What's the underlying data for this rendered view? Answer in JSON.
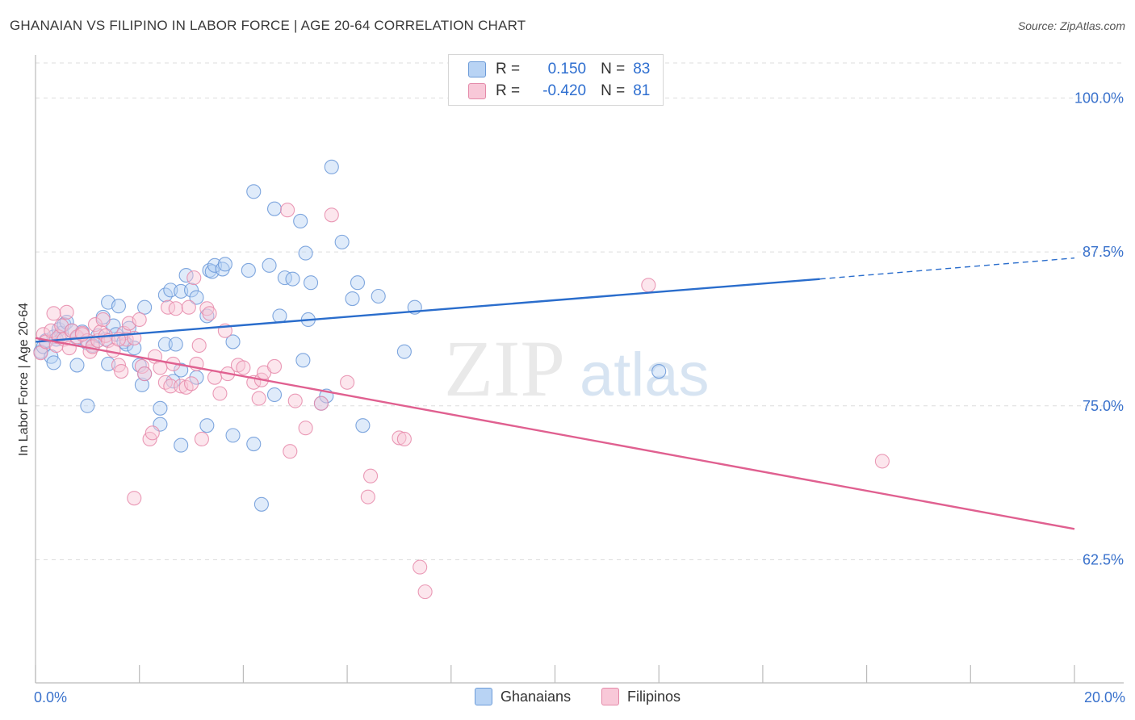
{
  "header": {
    "title": "GHANAIAN VS FILIPINO IN LABOR FORCE | AGE 20-64 CORRELATION CHART",
    "source": "Source: ZipAtlas.com"
  },
  "watermark": {
    "zip": "ZIP",
    "atlas": "atlas"
  },
  "legend_top": {
    "r_label": "R =",
    "n_label": "N =",
    "rows": [
      {
        "r": "0.150",
        "n": "83",
        "color": "#6c9bd8"
      },
      {
        "r": "-0.420",
        "n": "81",
        "color": "#e48aa9"
      }
    ]
  },
  "legend_bottom": [
    "Ghanaians",
    "Filipinos"
  ],
  "colors": {
    "blue_fill": "#b8d3f4",
    "blue_stroke": "#6a98d8",
    "blue_line": "#2a6dcc",
    "pink_fill": "#f8c8d8",
    "pink_stroke": "#e68aaa",
    "pink_line": "#e06090",
    "tick_text": "#3a72cc",
    "grid": "#dddddd"
  },
  "chart_data": {
    "type": "scatter",
    "title": "GHANAIAN VS FILIPINO IN LABOR FORCE | AGE 20-64 CORRELATION CHART",
    "xlabel": "",
    "ylabel": "In Labor Force | Age 20-64",
    "xlim": [
      0,
      20
    ],
    "ylim": [
      52.5,
      103.5
    ],
    "x_tick_labels": [
      {
        "value": 0,
        "label": "0.0%"
      },
      {
        "value": 20,
        "label": "20.0%"
      }
    ],
    "y_ticks": [
      {
        "value": 100,
        "label": "100.0%"
      },
      {
        "value": 87.5,
        "label": "87.5%"
      },
      {
        "value": 75,
        "label": "75.0%"
      },
      {
        "value": 62.5,
        "label": "62.5%"
      }
    ],
    "x_minor_ticks": [
      0,
      2,
      4,
      6,
      8,
      10,
      12,
      14,
      16,
      18,
      20
    ],
    "grid": "horizontal dashed",
    "series": [
      {
        "name": "Ghanaians",
        "r": 0.15,
        "n": 83,
        "trend": {
          "x": [
            0,
            15.1
          ],
          "y": [
            80.2,
            85.3
          ],
          "dashed_to": [
            20,
            87.0
          ]
        },
        "points": [
          [
            0.1,
            79.4
          ],
          [
            0.15,
            79.8
          ],
          [
            0.2,
            80.3
          ],
          [
            0.3,
            79.0
          ],
          [
            0.35,
            80.6
          ],
          [
            0.45,
            81.2
          ],
          [
            0.5,
            80.9
          ],
          [
            0.55,
            81.6
          ],
          [
            0.6,
            81.8
          ],
          [
            0.7,
            81.1
          ],
          [
            0.8,
            80.5
          ],
          [
            0.9,
            81.0
          ],
          [
            1.0,
            80.1
          ],
          [
            1.1,
            79.9
          ],
          [
            1.2,
            80.7
          ],
          [
            1.3,
            82.2
          ],
          [
            1.35,
            80.4
          ],
          [
            1.4,
            83.4
          ],
          [
            1.5,
            81.5
          ],
          [
            1.55,
            80.8
          ],
          [
            1.6,
            83.1
          ],
          [
            1.7,
            80.2
          ],
          [
            1.75,
            80.0
          ],
          [
            1.8,
            81.3
          ],
          [
            1.9,
            79.7
          ],
          [
            2.0,
            78.3
          ],
          [
            0.8,
            78.3
          ],
          [
            0.35,
            78.5
          ],
          [
            1.4,
            78.4
          ],
          [
            2.05,
            76.7
          ],
          [
            2.1,
            77.6
          ],
          [
            2.1,
            83.0
          ],
          [
            2.4,
            74.8
          ],
          [
            2.4,
            73.5
          ],
          [
            2.5,
            80.0
          ],
          [
            2.5,
            84.0
          ],
          [
            2.6,
            84.4
          ],
          [
            2.65,
            77.0
          ],
          [
            2.7,
            80.0
          ],
          [
            2.8,
            84.3
          ],
          [
            2.8,
            71.8
          ],
          [
            2.9,
            85.6
          ],
          [
            3.0,
            84.4
          ],
          [
            3.1,
            83.8
          ],
          [
            3.1,
            77.3
          ],
          [
            3.3,
            73.4
          ],
          [
            3.3,
            82.3
          ],
          [
            3.35,
            86.0
          ],
          [
            3.4,
            85.9
          ],
          [
            3.45,
            86.4
          ],
          [
            3.6,
            86.1
          ],
          [
            3.65,
            86.5
          ],
          [
            3.8,
            72.6
          ],
          [
            3.8,
            80.2
          ],
          [
            4.1,
            86.0
          ],
          [
            4.2,
            92.4
          ],
          [
            4.2,
            71.9
          ],
          [
            4.35,
            67.0
          ],
          [
            4.5,
            86.4
          ],
          [
            4.6,
            91.0
          ],
          [
            4.6,
            75.9
          ],
          [
            4.7,
            82.3
          ],
          [
            4.8,
            85.4
          ],
          [
            4.95,
            85.3
          ],
          [
            5.1,
            90.0
          ],
          [
            5.15,
            78.7
          ],
          [
            5.2,
            87.4
          ],
          [
            5.25,
            82.0
          ],
          [
            5.3,
            85.0
          ],
          [
            5.5,
            75.2
          ],
          [
            5.6,
            75.8
          ],
          [
            5.7,
            94.4
          ],
          [
            5.9,
            88.3
          ],
          [
            6.1,
            83.7
          ],
          [
            6.2,
            85.0
          ],
          [
            6.3,
            73.4
          ],
          [
            6.6,
            83.9
          ],
          [
            7.1,
            79.4
          ],
          [
            7.3,
            83.0
          ],
          [
            12.0,
            77.8
          ],
          [
            1.0,
            75.0
          ],
          [
            2.8,
            77.9
          ],
          [
            0.4,
            80.4
          ]
        ]
      },
      {
        "name": "Filipinos",
        "r": -0.42,
        "n": 81,
        "trend": {
          "x": [
            0,
            20
          ],
          "y": [
            80.5,
            65.0
          ]
        },
        "points": [
          [
            0.1,
            79.3
          ],
          [
            0.15,
            80.8
          ],
          [
            0.2,
            80.2
          ],
          [
            0.3,
            81.1
          ],
          [
            0.4,
            79.9
          ],
          [
            0.45,
            80.6
          ],
          [
            0.5,
            81.5
          ],
          [
            0.55,
            80.4
          ],
          [
            0.6,
            82.6
          ],
          [
            0.65,
            79.7
          ],
          [
            0.7,
            81.1
          ],
          [
            0.8,
            80.6
          ],
          [
            0.9,
            80.9
          ],
          [
            1.0,
            80.3
          ],
          [
            1.05,
            79.4
          ],
          [
            1.1,
            79.8
          ],
          [
            1.15,
            81.6
          ],
          [
            1.2,
            80.3
          ],
          [
            1.25,
            81.0
          ],
          [
            1.3,
            82.0
          ],
          [
            1.35,
            80.7
          ],
          [
            1.4,
            80.3
          ],
          [
            1.5,
            79.5
          ],
          [
            1.6,
            78.3
          ],
          [
            1.65,
            77.8
          ],
          [
            1.7,
            80.9
          ],
          [
            1.75,
            80.4
          ],
          [
            1.8,
            81.7
          ],
          [
            1.9,
            80.5
          ],
          [
            2.0,
            82.0
          ],
          [
            2.05,
            78.2
          ],
          [
            2.1,
            77.6
          ],
          [
            2.2,
            72.3
          ],
          [
            2.25,
            72.8
          ],
          [
            2.3,
            79.0
          ],
          [
            2.4,
            78.1
          ],
          [
            2.5,
            76.9
          ],
          [
            2.55,
            83.0
          ],
          [
            2.6,
            76.6
          ],
          [
            2.65,
            78.4
          ],
          [
            2.7,
            82.9
          ],
          [
            2.8,
            76.6
          ],
          [
            2.9,
            76.5
          ],
          [
            3.0,
            76.8
          ],
          [
            3.05,
            85.4
          ],
          [
            3.1,
            78.4
          ],
          [
            3.15,
            79.9
          ],
          [
            3.2,
            72.3
          ],
          [
            3.3,
            82.9
          ],
          [
            3.35,
            82.5
          ],
          [
            3.45,
            77.3
          ],
          [
            3.55,
            76.0
          ],
          [
            3.65,
            81.1
          ],
          [
            3.7,
            77.6
          ],
          [
            3.9,
            78.3
          ],
          [
            4.0,
            78.1
          ],
          [
            4.2,
            76.9
          ],
          [
            4.3,
            75.6
          ],
          [
            4.35,
            77.1
          ],
          [
            4.4,
            77.7
          ],
          [
            4.6,
            78.2
          ],
          [
            4.85,
            90.9
          ],
          [
            4.9,
            71.3
          ],
          [
            5.0,
            75.4
          ],
          [
            5.2,
            73.2
          ],
          [
            5.5,
            75.2
          ],
          [
            5.7,
            90.5
          ],
          [
            6.0,
            76.9
          ],
          [
            6.4,
            67.6
          ],
          [
            6.45,
            69.3
          ],
          [
            7.0,
            72.4
          ],
          [
            7.1,
            72.3
          ],
          [
            7.4,
            61.9
          ],
          [
            7.5,
            59.9
          ],
          [
            11.8,
            84.8
          ],
          [
            16.3,
            70.5
          ],
          [
            1.9,
            67.5
          ],
          [
            0.9,
            80.8
          ],
          [
            1.6,
            80.4
          ],
          [
            0.35,
            82.5
          ],
          [
            2.95,
            83.0
          ]
        ]
      }
    ]
  }
}
